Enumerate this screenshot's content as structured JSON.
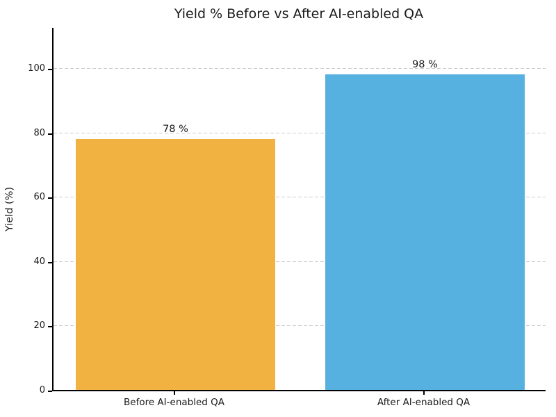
{
  "figure": {
    "background": "#ffffff",
    "text_color": "#1a1a1a"
  },
  "chart_data": {
    "type": "bar",
    "title": "Yield % Before vs After AI-enabled QA",
    "categories": [
      "Before AI-enabled QA",
      "After AI-enabled QA"
    ],
    "values": [
      78,
      98
    ],
    "bar_labels": [
      "78 %",
      "98 %"
    ],
    "bar_colors": [
      "#f2b242",
      "#57b1e0"
    ],
    "xlabel": "",
    "ylabel": "Yield (%)",
    "ylim": [
      0,
      113
    ],
    "yticks": [
      0,
      20,
      40,
      60,
      80,
      100
    ],
    "grid": "horizontal dashed gridlines at yticks above 0, drawn behind bars",
    "gridline_color": "#cccccc",
    "legend": "none"
  }
}
